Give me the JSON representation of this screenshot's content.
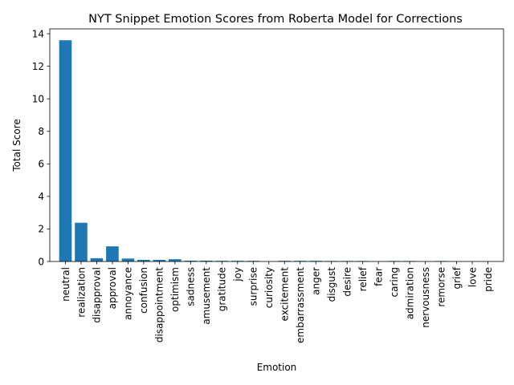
{
  "chart_data": {
    "type": "bar",
    "title": "NYT Snippet Emotion Scores from Roberta Model for Corrections",
    "xlabel": "Emotion",
    "ylabel": "Total Score",
    "ylim": [
      0,
      14.3
    ],
    "yticks": [
      0,
      2,
      4,
      6,
      8,
      10,
      12,
      14
    ],
    "grid": false,
    "bar_color": "#1f77b4",
    "categories": [
      "neutral",
      "realization",
      "disapproval",
      "approval",
      "annoyance",
      "confusion",
      "disappointment",
      "optimism",
      "sadness",
      "amusement",
      "gratitude",
      "joy",
      "surprise",
      "curiosity",
      "excitement",
      "embarrassment",
      "anger",
      "disgust",
      "desire",
      "relief",
      "fear",
      "caring",
      "admiration",
      "nervousness",
      "remorse",
      "grief",
      "love",
      "pride"
    ],
    "values": [
      13.6,
      2.38,
      0.2,
      0.93,
      0.18,
      0.1,
      0.1,
      0.14,
      0.05,
      0.05,
      0.04,
      0.04,
      0.04,
      0.0,
      0.04,
      0.04,
      0.04,
      0.03,
      0.03,
      0.03,
      0.0,
      0.03,
      0.03,
      0.0,
      0.03,
      0.0,
      0.0,
      0.0
    ]
  }
}
